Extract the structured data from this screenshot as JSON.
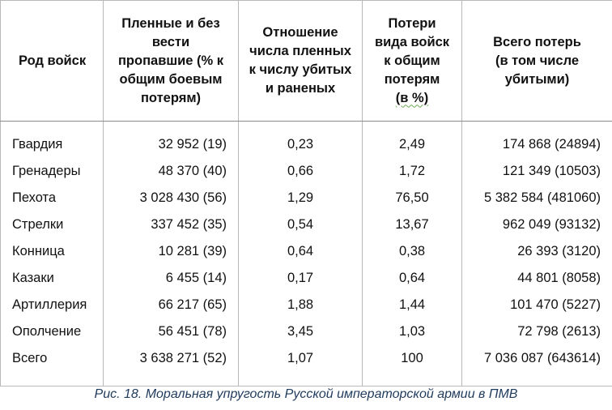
{
  "table": {
    "headers": [
      [
        "Род войск"
      ],
      [
        "Пленные и без",
        "вести",
        "пропавшие (% к",
        "общим боевым",
        "потерям)"
      ],
      [
        "Отношение",
        "числа пленных",
        "к числу убитых",
        "и раненых"
      ],
      [
        "Потери",
        "вида войск",
        "к общим",
        "потерям",
        "(в %)"
      ],
      [
        "Всего потерь",
        "(в том числе",
        "убитыми)"
      ]
    ],
    "rows": [
      {
        "branch": "Гвардия",
        "captured": "32 952 (19)",
        "ratio": "0,23",
        "share": "2,49",
        "total": "174 868 (24894)"
      },
      {
        "branch": "Гренадеры",
        "captured": "48 370 (40)",
        "ratio": "0,66",
        "share": "1,72",
        "total": "121 349 (10503)"
      },
      {
        "branch": "Пехота",
        "captured": "3 028 430 (56)",
        "ratio": "1,29",
        "share": "76,50",
        "total": "5 382 584 (481060)"
      },
      {
        "branch": "Стрелки",
        "captured": "337 452 (35)",
        "ratio": "0,54",
        "share": "13,67",
        "total": "962 049 (93132)"
      },
      {
        "branch": "Конница",
        "captured": "10 281 (39)",
        "ratio": "0,64",
        "share": "0,38",
        "total": "26 393 (3120)"
      },
      {
        "branch": "Казаки",
        "captured": "6 455 (14)",
        "ratio": "0,17",
        "share": "0,64",
        "total": "44 801 (8058)"
      },
      {
        "branch": "Артиллерия",
        "captured": "66 217 (65)",
        "ratio": "1,88",
        "share": "1,44",
        "total": "101 470 (5227)"
      },
      {
        "branch": "Ополчение",
        "captured": "56 451 (78)",
        "ratio": "3,45",
        "share": "1,03",
        "total": "72 798 (2613)"
      },
      {
        "branch": "Всего",
        "captured": "3 638 271 (52)",
        "ratio": "1,07",
        "share": "100",
        "total": "7 036 087 (643614)"
      }
    ]
  },
  "caption": "Рис. 18. Моральная упругость Русской императорской армии в ПМВ",
  "colors": {
    "caption": "#1f3a5c",
    "grid": "#b8b8b8",
    "text": "#111111"
  }
}
